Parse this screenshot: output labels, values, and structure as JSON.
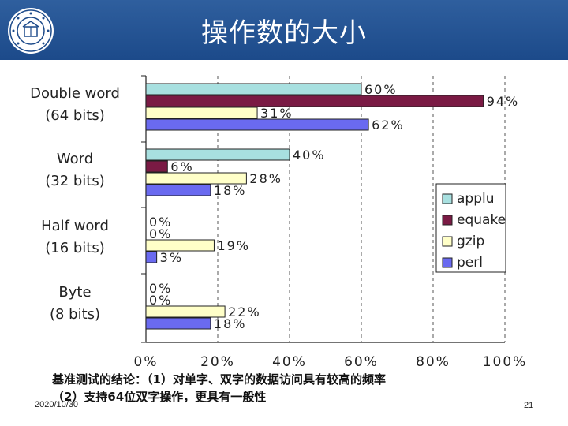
{
  "header": {
    "title": "操作数的大小"
  },
  "conclusion": {
    "line1": "基准测试的结论：（1）对单字、双字的数据访问具有较高的频率",
    "line2": "（2）支持64位双字操作，更具有一般性"
  },
  "footer": {
    "date": "2020/10/30",
    "page": "21"
  },
  "chart_data": {
    "type": "bar",
    "orientation": "horizontal",
    "categories": [
      [
        "Double word",
        "(64  bits)"
      ],
      [
        "Word",
        "(32  bits)"
      ],
      [
        "Half word",
        "(16  bits)"
      ],
      [
        "Byte",
        "(8  bits)"
      ]
    ],
    "series": [
      {
        "name": "applu",
        "color": "#a8e0e0",
        "values": [
          60,
          40,
          0,
          0
        ]
      },
      {
        "name": "equake",
        "color": "#7a1a44",
        "values": [
          94,
          6,
          0,
          0
        ]
      },
      {
        "name": "gzip",
        "color": "#ffffc8",
        "values": [
          31,
          28,
          19,
          22
        ]
      },
      {
        "name": "perl",
        "color": "#6a6af0",
        "values": [
          62,
          18,
          3,
          18
        ]
      }
    ],
    "xlim": [
      0,
      100
    ],
    "xticks": [
      "0%",
      "20%",
      "40%",
      "60%",
      "80%",
      "100%"
    ],
    "grid": true,
    "legend": "right"
  }
}
